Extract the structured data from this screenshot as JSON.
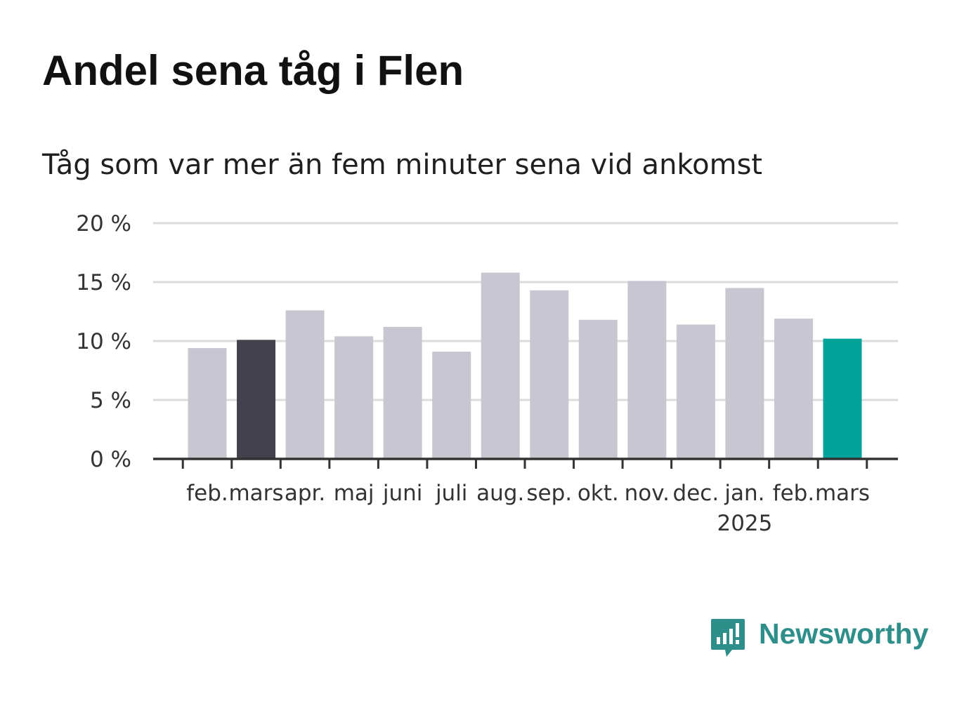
{
  "title": "Andel sena tåg i Flen",
  "subtitle": "Tåg som var mer än fem minuter sena vid ankomst",
  "brand": {
    "name": "Newsworthy",
    "icon": "bar-chart-speech-bubble-icon"
  },
  "colors": {
    "default_bar": "#c8c7d1",
    "previous_year_bar": "#43414d",
    "current_bar": "#00a39a",
    "gridline": "#dcdcdc",
    "axis": "#333333"
  },
  "chart_data": {
    "type": "bar",
    "title": "Andel sena tåg i Flen",
    "subtitle": "Tåg som var mer än fem minuter sena vid ankomst",
    "categories": [
      "feb.",
      "mars",
      "apr.",
      "maj",
      "juni",
      "juli",
      "aug.",
      "sep.",
      "okt.",
      "nov.",
      "dec.",
      "jan.",
      "feb.",
      "mars"
    ],
    "year_labels": [
      "",
      "",
      "",
      "",
      "",
      "",
      "",
      "",
      "",
      "",
      "",
      "2025",
      "",
      ""
    ],
    "values": [
      9.4,
      10.1,
      12.6,
      10.4,
      11.2,
      9.1,
      15.8,
      14.3,
      11.8,
      15.1,
      11.4,
      14.5,
      11.9,
      10.2
    ],
    "highlight": [
      "default",
      "previous_year",
      "default",
      "default",
      "default",
      "default",
      "default",
      "default",
      "default",
      "default",
      "default",
      "default",
      "default",
      "current"
    ],
    "ylim": [
      0,
      20
    ],
    "yticks": [
      0,
      5,
      10,
      15,
      20
    ],
    "ytick_labels": [
      "0 %",
      "5 %",
      "10 %",
      "15 %",
      "20 %"
    ],
    "xlabel": "",
    "ylabel": "",
    "grid": true
  }
}
